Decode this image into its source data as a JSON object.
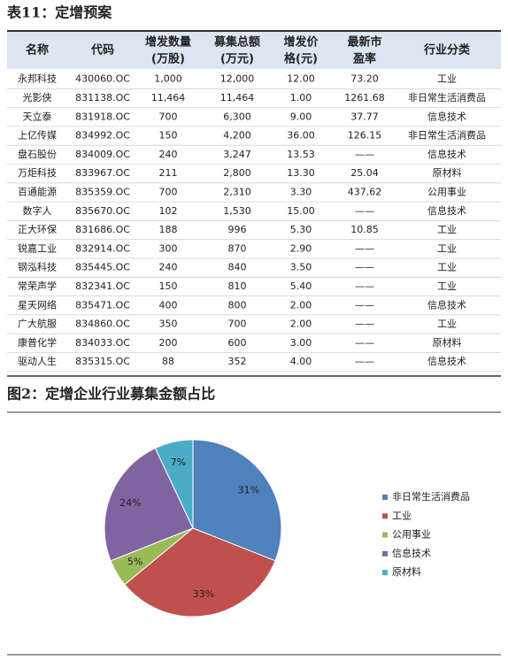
{
  "table": {
    "title": "表11：定增预案",
    "header": [
      [
        "名称"
      ],
      [
        "代码"
      ],
      [
        "增发数量",
        "(万股)"
      ],
      [
        "募集总额",
        "(万元)"
      ],
      [
        "增发价",
        "格(元)"
      ],
      [
        "最新市",
        "盈率"
      ],
      [
        "行业分类"
      ]
    ],
    "rows": [
      [
        "永邦科技",
        "430060.OC",
        "1,000",
        "12,000",
        "12.00",
        "73.20",
        "工业"
      ],
      [
        "光影侠",
        "831138.OC",
        "11,464",
        "11,464",
        "1.00",
        "1261.68",
        "非日常生活消费品"
      ],
      [
        "天立泰",
        "831918.OC",
        "700",
        "6,300",
        "9.00",
        "37.77",
        "信息技术"
      ],
      [
        "上亿传媒",
        "834992.OC",
        "150",
        "4,200",
        "36.00",
        "126.15",
        "非日常生活消费品"
      ],
      [
        "盘石股份",
        "834009.OC",
        "240",
        "3,247",
        "13.53",
        "——",
        "信息技术"
      ],
      [
        "万炬科技",
        "833967.OC",
        "211",
        "2,800",
        "13.30",
        "25.04",
        "原材料"
      ],
      [
        "百通能源",
        "835359.OC",
        "700",
        "2,310",
        "3.30",
        "437.62",
        "公用事业"
      ],
      [
        "数字人",
        "835670.OC",
        "102",
        "1,530",
        "15.00",
        "——",
        "信息技术"
      ],
      [
        "正大环保",
        "831686.OC",
        "188",
        "996",
        "5.30",
        "10.85",
        "工业"
      ],
      [
        "锐嘉工业",
        "832914.OC",
        "300",
        "870",
        "2.90",
        "——",
        "工业"
      ],
      [
        "钢泓科技",
        "835445.OC",
        "240",
        "840",
        "3.50",
        "——",
        "工业"
      ],
      [
        "常荣声学",
        "832341.OC",
        "150",
        "810",
        "5.40",
        "——",
        "工业"
      ],
      [
        "星天网络",
        "835471.OC",
        "400",
        "800",
        "2.00",
        "——",
        "信息技术"
      ],
      [
        "广大航服",
        "834860.OC",
        "350",
        "700",
        "2.00",
        "——",
        "工业"
      ],
      [
        "康普化学",
        "834033.OC",
        "200",
        "600",
        "3.00",
        "——",
        "原材料"
      ],
      [
        "驱动人生",
        "835315.OC",
        "88",
        "352",
        "4.00",
        "——",
        "信息技术"
      ]
    ]
  },
  "figure_title": "图2：定增企业行业募集金额占比",
  "chart_data": {
    "type": "pie",
    "categories": [
      "非日常生活消费品",
      "工业",
      "公用事业",
      "信息技术",
      "原材料"
    ],
    "values": [
      31,
      33,
      5,
      24,
      7
    ],
    "value_labels": [
      "31%",
      "33%",
      "5%",
      "24%",
      "7%"
    ],
    "colors": [
      "#4f81bd",
      "#c0504d",
      "#9bbb59",
      "#8064a2",
      "#4bacc6"
    ],
    "legend": "right"
  }
}
